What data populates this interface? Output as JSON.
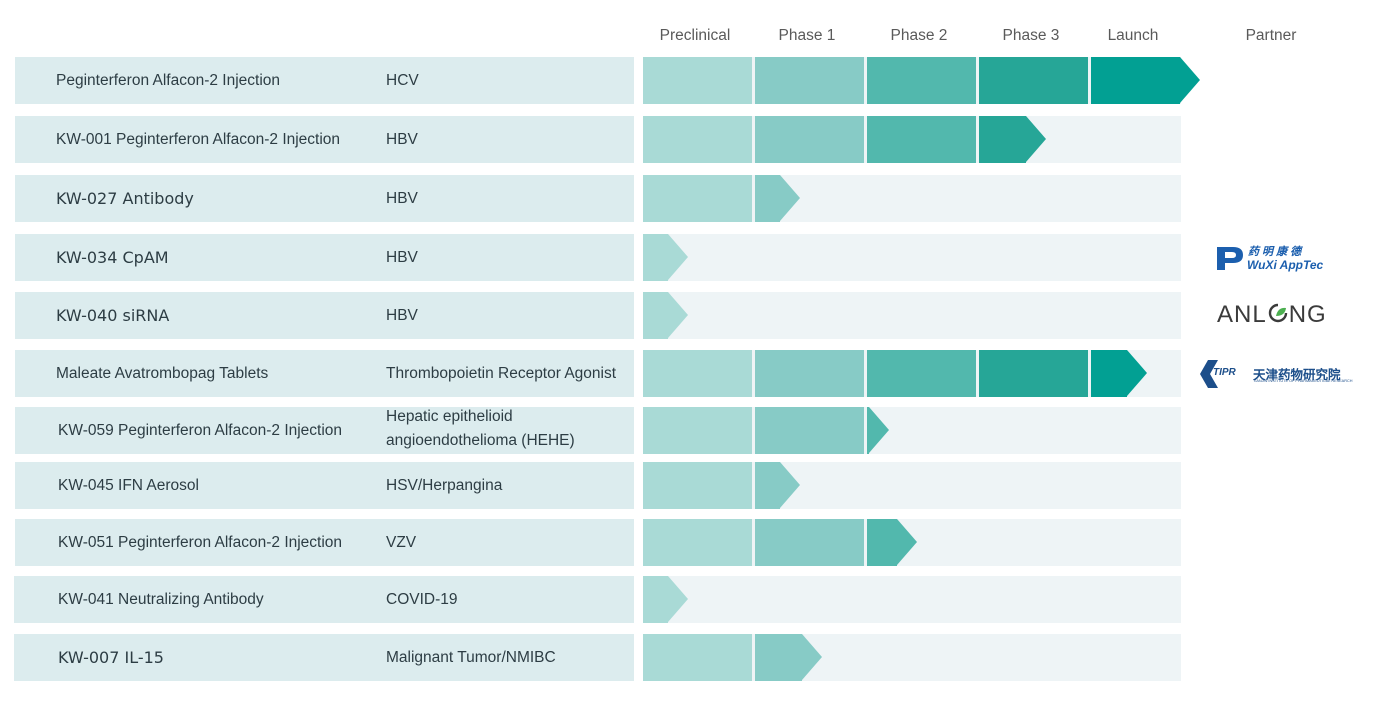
{
  "chart_data": {
    "type": "table",
    "phases": [
      "Preclinical",
      "Phase 1",
      "Phase 2",
      "Phase 3",
      "Launch"
    ],
    "partner_header": "Partner",
    "phase_colors": [
      "#a9dad6",
      "#87cbc6",
      "#52b8ad",
      "#26a697",
      "#02a093"
    ],
    "rows": [
      {
        "name": "Peginterferon Alfacon-2 Injection",
        "indication": [
          "HCV"
        ],
        "stage": 5,
        "partner": ""
      },
      {
        "name": "KW-001 Peginterferon Alfacon-2 Injection",
        "indication": [
          "HBV"
        ],
        "stage": 3.6,
        "partner": ""
      },
      {
        "name": "KW-027 Antibody",
        "indication": [
          "HBV"
        ],
        "stage": 1.4,
        "partner": ""
      },
      {
        "name": "KW-034 CpAM",
        "indication": [
          "HBV"
        ],
        "stage": 0.4,
        "partner": "wuxi"
      },
      {
        "name": "KW-040 siRNA",
        "indication": [
          "HBV"
        ],
        "stage": 0.4,
        "partner": "anlong"
      },
      {
        "name": "Maleate Avatrombopag Tablets",
        "indication": [
          "Thrombopoietin Receptor Agonist"
        ],
        "stage": 4.5,
        "partner": "tipr"
      },
      {
        "name": "KW-059 Peginterferon Alfacon-2 Injection",
        "indication": [
          "Hepatic epithelioid",
          "angioendothelioma (HEHE)"
        ],
        "stage": 2.2,
        "partner": ""
      },
      {
        "name": "KW-045 IFN Aerosol",
        "indication": [
          "HSV/Herpangina"
        ],
        "stage": 1.4,
        "partner": ""
      },
      {
        "name": "KW-051 Peginterferon Alfacon-2 Injection",
        "indication": [
          "VZV"
        ],
        "stage": 2.45,
        "partner": ""
      },
      {
        "name": "KW-041 Neutralizing Antibody",
        "indication": [
          "COVID-19"
        ],
        "stage": 0.4,
        "partner": ""
      },
      {
        "name": "KW-007 IL-15",
        "indication": [
          "Malignant Tumor/NMIBC"
        ],
        "stage": 1.6,
        "partner": ""
      }
    ]
  },
  "partners": {
    "wuxi": {
      "cn": "药 明 康 德",
      "en": "WuXi AppTec",
      "icon": "wuxi-logo-icon"
    },
    "anlong": {
      "text": "ANL",
      "text2": "NG",
      "icon": "leaf-icon"
    },
    "tipr": {
      "en_short": "TIPR",
      "cn": "天津药物研究院",
      "en": "TIANJIN INSTITUTE OF PHARMACEUTICAL RESEARCH",
      "icon": "tipr-logo-icon"
    }
  }
}
